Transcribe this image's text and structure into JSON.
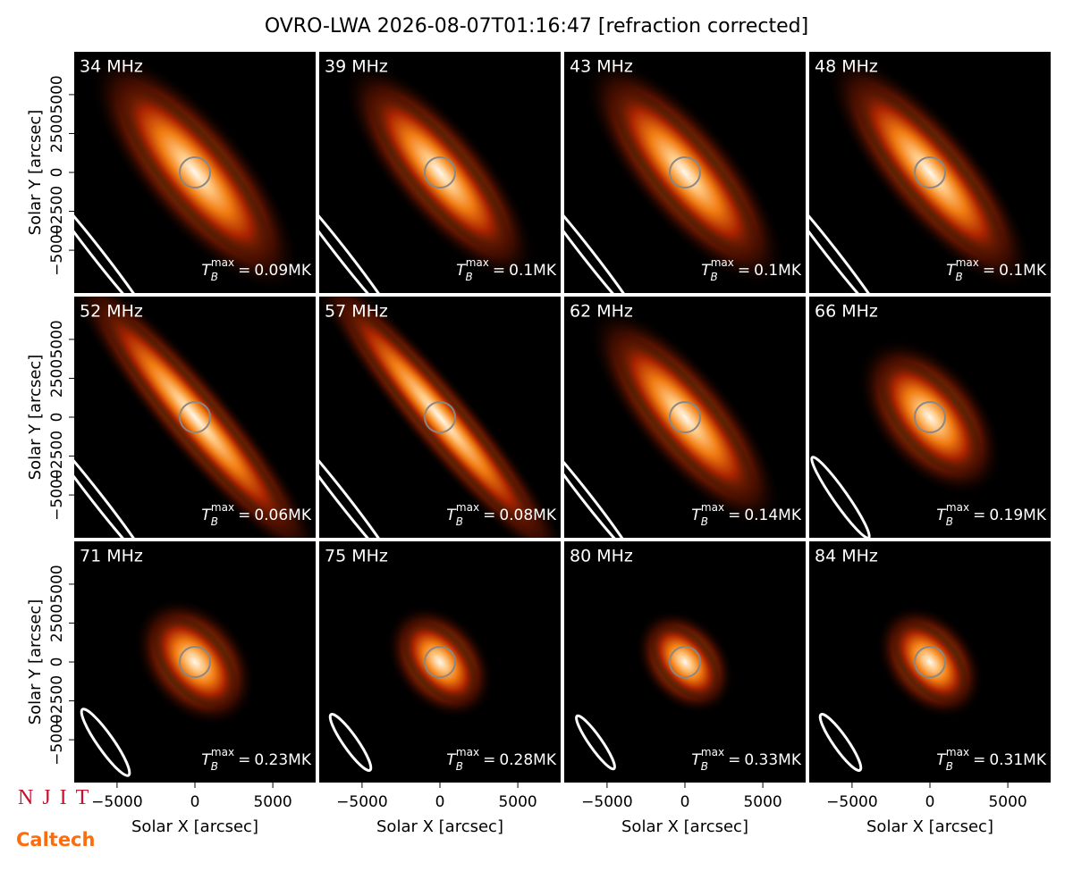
{
  "chart_data": {
    "type": "image",
    "title": "OVRO-LWA 2026-08-07T01:16:47 [refraction corrected]",
    "xlabel": "Solar X [arcsec]",
    "ylabel": "Solar Y [arcsec]",
    "xlim": [
      -7750,
      7750
    ],
    "ylim": [
      -7750,
      7750
    ],
    "xticks": [
      {
        "value": -5000,
        "label": "−5000"
      },
      0,
      5000
    ],
    "yticks": [
      {
        "value": -5000,
        "label": "−5000"
      },
      {
        "value": -2500,
        "label": "−2500"
      },
      0,
      2500,
      5000
    ],
    "tb_symbol": "T",
    "tb_sub": "B",
    "tb_sup": "max",
    "tb_eq": "=",
    "panels": [
      {
        "freq": "34 MHz",
        "tb_max": "0.09MK"
      },
      {
        "freq": "39 MHz",
        "tb_max": "0.1MK"
      },
      {
        "freq": "43 MHz",
        "tb_max": "0.1MK"
      },
      {
        "freq": "48 MHz",
        "tb_max": "0.1MK"
      },
      {
        "freq": "52 MHz",
        "tb_max": "0.06MK"
      },
      {
        "freq": "57 MHz",
        "tb_max": "0.08MK"
      },
      {
        "freq": "62 MHz",
        "tb_max": "0.14MK"
      },
      {
        "freq": "66 MHz",
        "tb_max": "0.19MK"
      },
      {
        "freq": "71 MHz",
        "tb_max": "0.23MK"
      },
      {
        "freq": "75 MHz",
        "tb_max": "0.28MK"
      },
      {
        "freq": "80 MHz",
        "tb_max": "0.33MK"
      },
      {
        "freq": "84 MHz",
        "tb_max": "0.31MK"
      }
    ]
  },
  "logos": [
    "NJIT",
    "Caltech"
  ]
}
